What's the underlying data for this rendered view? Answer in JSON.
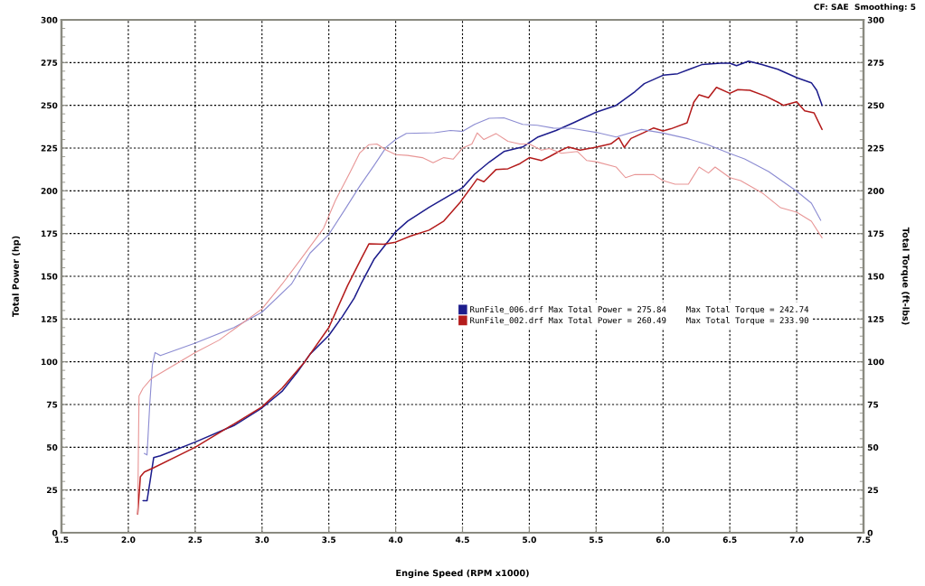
{
  "chart_data": {
    "type": "line",
    "xlabel": "Engine Speed (RPM x1000)",
    "ylabel": "Total Power (hp)",
    "y2label": "Total Torque (ft-lbs)",
    "annotations": [
      "CF: SAE  Smoothing: 5"
    ],
    "xlim": [
      1.5,
      7.5
    ],
    "xticks": [
      1.5,
      {
        "value": 2,
        "label": "2.0"
      },
      2.5,
      {
        "value": 3,
        "label": "3.0"
      },
      3.5,
      {
        "value": 4,
        "label": "4.0"
      },
      4.5,
      {
        "value": 5,
        "label": "5.0"
      },
      5.5,
      {
        "value": 6,
        "label": "6.0"
      },
      6.5,
      {
        "value": 7,
        "label": "7.0"
      },
      7.5
    ],
    "ylim": [
      0,
      300
    ],
    "yticks": [
      0,
      25,
      50,
      75,
      100,
      125,
      150,
      175,
      200,
      225,
      250,
      275,
      300
    ],
    "y2lim": [
      0,
      300
    ],
    "y2ticks": [
      0,
      25,
      50,
      75,
      100,
      125,
      150,
      175,
      200,
      225,
      250,
      275,
      300
    ],
    "grid": true,
    "legend": "right",
    "marker": "none",
    "line_style": "solid",
    "series": [
      {
        "name": "RunFile_006.drf Max Total Power = 275.84    Max Total Torque = 242.74",
        "color": "#1c1c8c",
        "x": [
          2.11,
          2.14,
          2.19,
          2.24,
          2.5,
          2.79,
          3.0,
          3.15,
          3.27,
          3.36,
          3.5,
          3.6,
          3.69,
          3.74,
          3.84,
          4.0,
          4.09,
          4.25,
          4.5,
          4.59,
          4.7,
          4.81,
          4.95,
          5.06,
          5.2,
          5.33,
          5.5,
          5.65,
          5.79,
          5.86,
          6.0,
          6.11,
          6.29,
          6.43,
          6.5,
          6.55,
          6.64,
          6.74,
          6.86,
          7.0,
          7.11,
          7.15,
          7.19
        ],
        "values": [
          18.7,
          18.7,
          44,
          45,
          53,
          62.7,
          73,
          82.7,
          94.5,
          104.5,
          115.4,
          126.3,
          137.3,
          145.4,
          160.2,
          176,
          182.3,
          190.3,
          201.8,
          209.7,
          216.8,
          223,
          225.6,
          231.3,
          235.3,
          239.8,
          246,
          250,
          258,
          262.7,
          267.6,
          268.5,
          273.8,
          274.6,
          274.6,
          273.2,
          275.8,
          273.8,
          271.1,
          266.2,
          263.2,
          258.8,
          250
        ]
      },
      {
        "name": "RunFile_002.drf Max Total Power = 260.49    Max Total Torque = 233.90",
        "color": "#b41c1c",
        "x": [
          2.07,
          2.09,
          2.12,
          2.19,
          2.5,
          2.79,
          3.0,
          3.15,
          3.32,
          3.5,
          3.64,
          3.74,
          3.8,
          3.91,
          4.0,
          4.11,
          4.25,
          4.36,
          4.48,
          4.57,
          4.61,
          4.66,
          4.75,
          4.84,
          4.93,
          5.0,
          5.09,
          5.15,
          5.24,
          5.29,
          5.38,
          5.5,
          5.61,
          5.67,
          5.71,
          5.76,
          5.86,
          5.93,
          6.0,
          6.06,
          6.18,
          6.23,
          6.27,
          6.34,
          6.4,
          6.5,
          6.56,
          6.65,
          6.77,
          6.86,
          6.9,
          7.0,
          7.06,
          7.13,
          7.19
        ],
        "values": [
          10.9,
          32.7,
          35.5,
          38,
          50,
          63.6,
          73.6,
          84.5,
          100,
          120,
          144.5,
          160,
          169,
          168.7,
          170,
          173.5,
          177,
          182.3,
          193,
          202.6,
          207,
          205.3,
          212.4,
          212.9,
          215.9,
          219.4,
          217.7,
          220,
          223.8,
          225.6,
          223.8,
          225.5,
          227.5,
          231,
          225.4,
          230.6,
          234.2,
          236.8,
          235,
          236.3,
          239.8,
          251.8,
          256.2,
          254.4,
          260.5,
          257,
          259.2,
          258.8,
          255.3,
          251.8,
          250,
          252.1,
          246.8,
          245.6,
          235.9
        ]
      },
      {
        "color": "#8c8cd2",
        "axis": "y2",
        "x": [
          2.12,
          2.14,
          2.16,
          2.18,
          2.2,
          2.24,
          2.5,
          2.79,
          3.0,
          3.22,
          3.36,
          3.5,
          3.62,
          3.73,
          3.84,
          3.93,
          4.0,
          4.08,
          4.29,
          4.41,
          4.5,
          4.59,
          4.7,
          4.81,
          4.95,
          5.06,
          5.18,
          5.31,
          5.5,
          5.65,
          5.84,
          6.0,
          6.18,
          6.33,
          6.5,
          6.61,
          6.79,
          7.0,
          7.11,
          7.18
        ],
        "values": [
          46.4,
          45.5,
          74.5,
          98,
          105.4,
          103.6,
          110.9,
          120,
          129,
          145.4,
          163.6,
          174.5,
          189,
          202.6,
          215,
          225.6,
          230,
          233.6,
          234,
          235.3,
          234.8,
          238.9,
          242.4,
          242.7,
          238.9,
          238.3,
          236.7,
          236.6,
          234.2,
          231.5,
          235.9,
          233.8,
          230.6,
          227.1,
          221.8,
          218.7,
          211.3,
          199.8,
          192.8,
          182.7
        ]
      },
      {
        "color": "#e89696",
        "axis": "y2",
        "x": [
          2.07,
          2.08,
          2.11,
          2.17,
          2.5,
          2.68,
          2.79,
          3.0,
          3.15,
          3.29,
          3.46,
          3.55,
          3.66,
          3.73,
          3.8,
          3.86,
          3.93,
          4.0,
          4.09,
          4.2,
          4.28,
          4.36,
          4.43,
          4.5,
          4.57,
          4.61,
          4.66,
          4.75,
          4.84,
          4.93,
          5.0,
          5.09,
          5.15,
          5.24,
          5.36,
          5.43,
          5.5,
          5.65,
          5.72,
          5.79,
          5.93,
          6.0,
          6.09,
          6.19,
          6.27,
          6.34,
          6.39,
          6.5,
          6.58,
          6.74,
          6.88,
          7.0,
          7.11,
          7.19
        ],
        "values": [
          11,
          80,
          84.5,
          90,
          105.4,
          112.7,
          119,
          130.9,
          145.4,
          160,
          178,
          194.5,
          211,
          222,
          227,
          227.4,
          223.8,
          221.2,
          220.7,
          219.4,
          216.4,
          219.4,
          218.5,
          225,
          227.4,
          233.9,
          230,
          233.5,
          229,
          227.4,
          227.4,
          223.8,
          224.7,
          222,
          223,
          217.7,
          217,
          213.9,
          207.7,
          209.5,
          209.5,
          206,
          203.9,
          203.9,
          213.9,
          210.4,
          213.9,
          207.7,
          206,
          198.9,
          190.1,
          187.5,
          182.2,
          172.5
        ]
      }
    ]
  }
}
